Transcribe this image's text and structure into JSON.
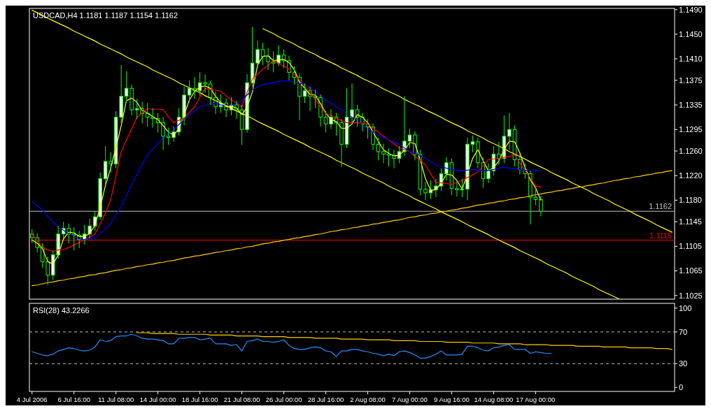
{
  "chart_data": [
    {
      "type": "candlestick",
      "title": "USDCAD,H4  1.1181 1.1187 1.1154 1.1162",
      "tick_labels": "y",
      "ylim": [
        1.1019,
        1.1492
      ],
      "yticks": [
        {
          "value": 1.149,
          "label": "1.1490"
        },
        {
          "value": 1.145,
          "label": "1.1450"
        },
        {
          "value": 1.141,
          "label": "1.1410"
        },
        1.1375,
        1.1335,
        1.1295,
        {
          "value": 1.126,
          "label": "1.1260"
        },
        {
          "value": 1.122,
          "label": "1.1220"
        },
        {
          "value": 1.118,
          "label": "1.1180"
        },
        1.1145,
        1.1105,
        1.1065,
        1.1025
      ],
      "categories": [
        null,
        null,
        null,
        null,
        null,
        null,
        null,
        null,
        null,
        null,
        null,
        null,
        null,
        null,
        null,
        null,
        null,
        null,
        null,
        null,
        null,
        null,
        null,
        null,
        null,
        null,
        null,
        null,
        null,
        null,
        null,
        null,
        null,
        null,
        null,
        null,
        null,
        null,
        null,
        null,
        null,
        null,
        null,
        null,
        null,
        null,
        null,
        null,
        null,
        null,
        null,
        null,
        null,
        null,
        null,
        null,
        null,
        null,
        null,
        null,
        null,
        null,
        null,
        null,
        null,
        null,
        null,
        null,
        null,
        null,
        null,
        null,
        null,
        null,
        null,
        null,
        null,
        null,
        null,
        null,
        null,
        null,
        null,
        null,
        null,
        null,
        null,
        null,
        null,
        null,
        null,
        null,
        null,
        null,
        null,
        null,
        null,
        null,
        null,
        null,
        null,
        null,
        null,
        null,
        null,
        null,
        null,
        null,
        null,
        null,
        null,
        null,
        null,
        null,
        null,
        null,
        null,
        null,
        null,
        null,
        null,
        null,
        null
      ],
      "color": "#00ff00",
      "ohlc": [
        [
          1.1125,
          1.1133,
          1.111,
          1.1119
        ],
        [
          1.1119,
          1.1126,
          1.1095,
          1.1103
        ],
        [
          1.1103,
          1.111,
          1.107,
          1.108
        ],
        [
          1.108,
          1.1088,
          1.1042,
          1.1058
        ],
        [
          1.1058,
          1.1098,
          1.105,
          1.1091
        ],
        [
          1.1091,
          1.1138,
          1.1085,
          1.1125
        ],
        [
          1.1125,
          1.1145,
          1.1118,
          1.1134
        ],
        [
          1.1134,
          1.1142,
          1.111,
          1.1125
        ],
        [
          1.1125,
          1.1136,
          1.1098,
          1.1123
        ],
        [
          1.1123,
          1.113,
          1.1102,
          1.1116
        ],
        [
          1.1116,
          1.114,
          1.1108,
          1.1125
        ],
        [
          1.1125,
          1.115,
          1.1118,
          1.1138
        ],
        [
          1.1138,
          1.1162,
          1.113,
          1.1153
        ],
        [
          1.1153,
          1.1225,
          1.1148,
          1.1215
        ],
        [
          1.1215,
          1.1268,
          1.1205,
          1.1243
        ],
        [
          1.1243,
          1.1258,
          1.1225,
          1.1239
        ],
        [
          1.1239,
          1.1325,
          1.1232,
          1.1315
        ],
        [
          1.1315,
          1.14,
          1.1305,
          1.1349
        ],
        [
          1.1349,
          1.139,
          1.134,
          1.1362
        ],
        [
          1.1362,
          1.1368,
          1.1318,
          1.1327
        ],
        [
          1.1327,
          1.1345,
          1.1312,
          1.1329
        ],
        [
          1.1329,
          1.134,
          1.1305,
          1.1321
        ],
        [
          1.1321,
          1.1338,
          1.13,
          1.1315
        ],
        [
          1.1315,
          1.133,
          1.1298,
          1.1313
        ],
        [
          1.1313,
          1.1322,
          1.129,
          1.1306
        ],
        [
          1.1306,
          1.1315,
          1.1262,
          1.1284
        ],
        [
          1.1284,
          1.1298,
          1.127,
          1.1282
        ],
        [
          1.1282,
          1.13,
          1.1275,
          1.1291
        ],
        [
          1.1291,
          1.133,
          1.1285,
          1.1315
        ],
        [
          1.1315,
          1.1365,
          1.1302,
          1.1351
        ],
        [
          1.1351,
          1.1375,
          1.134,
          1.1362
        ],
        [
          1.1362,
          1.138,
          1.1345,
          1.1358
        ],
        [
          1.1358,
          1.1388,
          1.135,
          1.1371
        ],
        [
          1.1371,
          1.1385,
          1.1355,
          1.1369
        ],
        [
          1.1369,
          1.1375,
          1.1335,
          1.1347
        ],
        [
          1.1347,
          1.1356,
          1.132,
          1.1332
        ],
        [
          1.1332,
          1.1352,
          1.1322,
          1.1338
        ],
        [
          1.1338,
          1.1346,
          1.1315,
          1.1327
        ],
        [
          1.1327,
          1.1348,
          1.1318,
          1.1335
        ],
        [
          1.1335,
          1.1342,
          1.1312,
          1.1327
        ],
        [
          1.1327,
          1.1335,
          1.127,
          1.1295
        ],
        [
          1.1295,
          1.1385,
          1.129,
          1.1371
        ],
        [
          1.1371,
          1.1462,
          1.1365,
          1.1403
        ],
        [
          1.1403,
          1.144,
          1.1395,
          1.1425
        ],
        [
          1.1425,
          1.1436,
          1.14,
          1.1414
        ],
        [
          1.1414,
          1.1428,
          1.1392,
          1.1405
        ],
        [
          1.1405,
          1.1422,
          1.1388,
          1.1403
        ],
        [
          1.1403,
          1.1432,
          1.1398,
          1.1416
        ],
        [
          1.1416,
          1.1425,
          1.1395,
          1.1407
        ],
        [
          1.1407,
          1.1415,
          1.1375,
          1.1388
        ],
        [
          1.1388,
          1.1398,
          1.1368,
          1.138
        ],
        [
          1.138,
          1.1386,
          1.131,
          1.1349
        ],
        [
          1.1349,
          1.137,
          1.1338,
          1.1358
        ],
        [
          1.1358,
          1.1365,
          1.1325,
          1.1349
        ],
        [
          1.1349,
          1.136,
          1.133,
          1.1347
        ],
        [
          1.1347,
          1.1352,
          1.13,
          1.1315
        ],
        [
          1.1315,
          1.1325,
          1.129,
          1.1304
        ],
        [
          1.1304,
          1.1328,
          1.1296,
          1.1315
        ],
        [
          1.1315,
          1.1322,
          1.1285,
          1.1306
        ],
        [
          1.1306,
          1.1312,
          1.1234,
          1.1271
        ],
        [
          1.1271,
          1.1362,
          1.1265,
          1.1315
        ],
        [
          1.1315,
          1.137,
          1.1305,
          1.1327
        ],
        [
          1.1327,
          1.1335,
          1.13,
          1.1315
        ],
        [
          1.1315,
          1.1322,
          1.1292,
          1.1304
        ],
        [
          1.1304,
          1.1312,
          1.128,
          1.1299
        ],
        [
          1.1299,
          1.1305,
          1.1262,
          1.1271
        ],
        [
          1.1271,
          1.1282,
          1.1245,
          1.1259
        ],
        [
          1.1259,
          1.1272,
          1.124,
          1.1255
        ],
        [
          1.1255,
          1.1265,
          1.1235,
          1.1253
        ],
        [
          1.1253,
          1.1262,
          1.1232,
          1.1248
        ],
        [
          1.1248,
          1.1268,
          1.124,
          1.1259
        ],
        [
          1.1259,
          1.1349,
          1.1252,
          1.1276
        ],
        [
          1.1276,
          1.1296,
          1.1265,
          1.1286
        ],
        [
          1.1286,
          1.1292,
          1.1245,
          1.1254
        ],
        [
          1.1254,
          1.1262,
          1.1188,
          1.1198
        ],
        [
          1.1198,
          1.121,
          1.118,
          1.1192
        ],
        [
          1.1192,
          1.1212,
          1.1182,
          1.1197
        ],
        [
          1.1197,
          1.1215,
          1.1185,
          1.1203
        ],
        [
          1.1203,
          1.1232,
          1.1195,
          1.1223
        ],
        [
          1.1223,
          1.125,
          1.1212,
          1.1241
        ],
        [
          1.1241,
          1.1248,
          1.1188,
          1.1199
        ],
        [
          1.1199,
          1.1212,
          1.1186,
          1.1197
        ],
        [
          1.1197,
          1.1215,
          1.1185,
          1.1198
        ],
        [
          1.1198,
          1.1282,
          1.118,
          1.1271
        ],
        [
          1.1271,
          1.1285,
          1.1258,
          1.1275
        ],
        [
          1.1275,
          1.1282,
          1.1232,
          1.1241
        ],
        [
          1.1241,
          1.125,
          1.12,
          1.1215
        ],
        [
          1.1215,
          1.124,
          1.1208,
          1.1228
        ],
        [
          1.1228,
          1.1268,
          1.122,
          1.1255
        ],
        [
          1.1255,
          1.1275,
          1.1238,
          1.1248
        ],
        [
          1.1248,
          1.1318,
          1.124,
          1.1284
        ],
        [
          1.1284,
          1.1322,
          1.1262,
          1.1295
        ],
        [
          1.1295,
          1.1302,
          1.1235,
          1.1246
        ],
        [
          1.1246,
          1.1255,
          1.1222,
          1.123
        ],
        [
          1.123,
          1.124,
          1.1215,
          1.1223
        ],
        [
          1.1223,
          1.1228,
          1.1141,
          1.1185
        ],
        [
          1.1185,
          1.12,
          1.1172,
          1.1181
        ],
        [
          1.1181,
          1.1187,
          1.1154,
          1.1162
        ],
        null,
        null,
        null,
        null,
        null,
        null,
        null,
        null,
        null,
        null,
        null,
        null,
        null,
        null,
        null,
        null,
        null,
        null,
        null,
        null,
        null,
        null,
        null,
        null,
        null
      ],
      "series": [
        {
          "type": "line",
          "color": "#ffff00",
          "values": [
            1.1115,
            1.111,
            1.1101,
            1.108,
            1.1076,
            1.1091,
            1.1117,
            1.1128,
            1.1127,
            1.1121,
            1.1121,
            1.1126,
            1.1139,
            1.1169,
            1.1204,
            1.1232,
            1.1266,
            1.1301,
            1.1342,
            1.1346,
            1.1339,
            1.1326,
            1.1322,
            1.1316,
            1.1311,
            1.1301,
            1.1291,
            1.1286,
            1.1296,
            1.1319,
            1.1343,
            1.1357,
            1.1364,
            1.1366,
            1.1362,
            1.1349,
            1.1339,
            1.1332,
            1.1333,
            1.133,
            1.1319,
            1.1331,
            1.1356,
            1.14,
            1.1414,
            1.1415,
            1.1407,
            1.1408,
            1.1409,
            1.1404,
            1.1392,
            1.1372,
            1.1362,
            1.1352,
            1.1351,
            1.1337,
            1.1322,
            1.1311,
            1.1308,
            1.1297,
            1.1297,
            1.1304,
            1.1319,
            1.1315,
            1.1306,
            1.1291,
            1.1276,
            1.1262,
            1.1256,
            1.1252,
            1.1253,
            1.1261,
            1.1274,
            1.1272,
            1.1246,
            1.1215,
            1.1196,
            1.1197,
            1.1208,
            1.1222,
            1.1221,
            1.1212,
            1.1198,
            1.1222,
            1.1248,
            1.1262,
            1.1244,
            1.1228,
            1.1233,
            1.1244,
            1.1262,
            1.1276,
            1.1275,
            1.1257,
            1.1233,
            1.1213,
            1.12,
            1.118,
            null,
            null,
            null,
            null,
            null,
            null,
            null,
            null,
            null,
            null,
            null,
            null,
            null,
            null,
            null,
            null,
            null,
            null,
            null,
            null,
            null,
            null,
            null,
            null,
            null
          ]
        },
        {
          "type": "line",
          "color": "#ff0000",
          "values": [
            1.1125,
            1.1114,
            1.1103,
            1.1099,
            1.1097,
            1.1099,
            1.11,
            1.1103,
            1.1107,
            1.1111,
            1.1116,
            1.112,
            1.1125,
            1.1142,
            1.1159,
            1.1181,
            1.122,
            1.1259,
            1.1278,
            1.1296,
            1.1315,
            1.1322,
            1.1329,
            1.1328,
            1.1328,
            1.1327,
            1.1316,
            1.1306,
            1.131,
            1.1313,
            1.1323,
            1.1332,
            1.1348,
            1.1362,
            1.136,
            1.1359,
            1.1357,
            1.135,
            1.1343,
            1.1338,
            1.1332,
            1.1355,
            1.1377,
            1.1385,
            1.1393,
            1.1399,
            1.1407,
            1.1403,
            1.1398,
            1.1394,
            1.1385,
            1.1375,
            1.1366,
            1.1355,
            1.1343,
            1.1332,
            1.1321,
            1.1318,
            1.1313,
            1.131,
            1.1306,
            1.1306,
            1.1306,
            1.1305,
            1.1304,
            1.1297,
            1.1291,
            1.1284,
            1.1278,
            1.1272,
            1.1265,
            1.1262,
            1.1259,
            1.1251,
            1.1245,
            1.1237,
            1.1223,
            1.1209,
            1.1208,
            1.1207,
            1.1206,
            1.1209,
            1.1212,
            1.1217,
            1.1221,
            1.1226,
            1.1236,
            1.1246,
            1.1247,
            1.1248,
            1.125,
            1.1251,
            1.1254,
            1.124,
            1.1228,
            1.1216,
            1.1203,
            1.1201,
            null,
            null,
            null,
            null,
            null,
            null,
            null,
            null,
            null,
            null,
            null,
            null,
            null,
            null,
            null,
            null,
            null,
            null,
            null,
            null,
            null,
            null,
            null,
            null,
            null
          ]
        },
        {
          "type": "line",
          "color": "#0000ff",
          "values": [
            1.1178,
            1.1171,
            1.1164,
            1.1154,
            1.1144,
            1.1137,
            1.1131,
            1.1125,
            1.1122,
            1.1117,
            1.1116,
            1.1117,
            1.1119,
            1.1126,
            1.1133,
            1.1143,
            1.1156,
            1.117,
            1.1188,
            1.1206,
            1.1222,
            1.1238,
            1.1254,
            1.1263,
            1.1272,
            1.1281,
            1.1288,
            1.1295,
            1.1303,
            1.1311,
            1.1319,
            1.1325,
            1.1332,
            1.1334,
            1.1337,
            1.1337,
            1.1335,
            1.1334,
            1.1335,
            1.1337,
            1.1342,
            1.1351,
            1.136,
            1.1364,
            1.1368,
            1.137,
            1.1371,
            1.1374,
            1.1374,
            1.1374,
            1.1372,
            1.137,
            1.1369,
            1.1362,
            1.1357,
            1.135,
            1.1343,
            1.1338,
            1.1332,
            1.1327,
            1.1321,
            1.1315,
            1.131,
            1.1303,
            1.1296,
            1.1291,
            1.1286,
            1.1282,
            1.1278,
            1.1275,
            1.1271,
            1.1265,
            1.1259,
            1.1256,
            1.1253,
            1.1248,
            1.1243,
            1.1237,
            1.1235,
            1.1232,
            1.123,
            1.1229,
            1.1228,
            1.1229,
            1.123,
            1.1229,
            1.1228,
            1.1228,
            1.123,
            1.1232,
            1.1234,
            1.1232,
            1.1231,
            1.123,
            1.1229,
            1.1228,
            1.1228,
            1.1228,
            null,
            null,
            null,
            null,
            null,
            null,
            null,
            null,
            null,
            null,
            null,
            null,
            null,
            null,
            null,
            null,
            null,
            null,
            null,
            null,
            null,
            null,
            null,
            null,
            null
          ]
        },
        {
          "type": "line",
          "color": "#ffff00",
          "values": [
            1.1489,
            1.1485,
            1.1481,
            1.1476,
            1.1472,
            1.1468,
            1.1464,
            1.146,
            1.1455,
            1.1451,
            1.1447,
            1.1443,
            1.1439,
            1.1434,
            1.143,
            1.1426,
            1.1422,
            1.1418,
            1.1413,
            1.1409,
            1.1405,
            1.1401,
            1.1397,
            1.1392,
            1.1388,
            1.1384,
            1.138,
            1.1376,
            1.1371,
            1.1367,
            1.1363,
            1.1359,
            1.1355,
            1.135,
            1.1346,
            1.1342,
            1.1338,
            1.1334,
            1.1329,
            1.1325,
            1.1321,
            1.1317,
            1.1313,
            1.1308,
            1.1304,
            1.13,
            1.1296,
            1.1292,
            1.1287,
            1.1283,
            1.1279,
            1.1275,
            1.1271,
            1.1266,
            1.1262,
            1.1258,
            1.1254,
            1.125,
            1.1245,
            1.1241,
            1.1237,
            1.1233,
            1.1229,
            1.1224,
            1.122,
            1.1216,
            1.1212,
            1.1208,
            1.1203,
            1.1199,
            1.1195,
            1.1191,
            1.1187,
            1.1182,
            1.1178,
            1.1174,
            1.117,
            1.1166,
            1.1161,
            1.1157,
            1.1153,
            1.1149,
            1.1145,
            1.114,
            1.1136,
            1.1132,
            1.1128,
            1.1124,
            1.1119,
            1.1115,
            1.1111,
            1.1107,
            1.1103,
            1.1098,
            1.1094,
            1.109,
            1.1086,
            1.1082,
            1.1077,
            1.1073,
            1.1069,
            1.1065,
            1.1061,
            1.1056,
            1.1052,
            1.1048,
            1.1044,
            1.104,
            1.1035,
            1.1031,
            1.1027,
            1.1023,
            1.1019,
            null,
            null,
            null,
            null,
            null,
            null,
            null,
            null,
            null,
            null
          ]
        },
        {
          "type": "line",
          "color": "#ffff00",
          "values": [
            null,
            null,
            null,
            null,
            null,
            null,
            null,
            null,
            null,
            null,
            null,
            null,
            null,
            null,
            null,
            null,
            null,
            null,
            null,
            null,
            null,
            null,
            null,
            null,
            null,
            null,
            null,
            null,
            null,
            null,
            null,
            null,
            null,
            null,
            null,
            null,
            null,
            null,
            null,
            null,
            null,
            null,
            null,
            null,
            1.1459,
            1.1455,
            1.1451,
            1.1446,
            1.1442,
            1.1438,
            1.1434,
            1.1429,
            1.1425,
            1.1421,
            1.1417,
            1.1412,
            1.1408,
            1.1404,
            1.14,
            1.1395,
            1.1391,
            1.1387,
            1.1383,
            1.1378,
            1.1374,
            1.137,
            1.1366,
            1.1361,
            1.1357,
            1.1353,
            1.1349,
            1.1344,
            1.134,
            1.1336,
            1.1332,
            1.1327,
            1.1323,
            1.1319,
            1.1315,
            1.131,
            1.1306,
            1.1302,
            1.1298,
            1.1293,
            1.1289,
            1.1285,
            1.1281,
            1.1276,
            1.1272,
            1.1268,
            1.1264,
            1.1259,
            1.1255,
            1.1251,
            1.1247,
            1.1242,
            1.1238,
            1.1234,
            1.123,
            1.1225,
            1.1221,
            1.1217,
            1.1213,
            1.1208,
            1.1204,
            1.12,
            1.1196,
            1.1191,
            1.1187,
            1.1183,
            1.1179,
            1.1174,
            1.117,
            1.1166,
            1.1162,
            1.1157,
            1.1153,
            1.1149,
            1.1145,
            1.114,
            1.1136,
            1.1132,
            1.1128
          ]
        },
        {
          "type": "line",
          "color": "#ffcc00",
          "values": [
            1.1041,
            1.1042,
            1.1044,
            1.1046,
            1.1047,
            1.1049,
            1.105,
            1.1052,
            1.1053,
            1.1055,
            1.1056,
            1.1058,
            1.1059,
            1.1061,
            1.1062,
            1.1064,
            1.1066,
            1.1067,
            1.1069,
            1.107,
            1.1072,
            1.1073,
            1.1075,
            1.1076,
            1.1078,
            1.1079,
            1.1081,
            1.1082,
            1.1084,
            1.1086,
            1.1087,
            1.1089,
            1.109,
            1.1092,
            1.1093,
            1.1095,
            1.1096,
            1.1098,
            1.1099,
            1.1101,
            1.1102,
            1.1104,
            1.1105,
            1.1107,
            1.1109,
            1.111,
            1.1112,
            1.1113,
            1.1115,
            1.1116,
            1.1118,
            1.1119,
            1.1121,
            1.1122,
            1.1124,
            1.1125,
            1.1127,
            1.1129,
            1.113,
            1.1132,
            1.1133,
            1.1135,
            1.1136,
            1.1138,
            1.1139,
            1.1141,
            1.1142,
            1.1144,
            1.1145,
            1.1147,
            1.1148,
            1.115,
            1.1152,
            1.1153,
            1.1155,
            1.1156,
            1.1158,
            1.1159,
            1.1161,
            1.1162,
            1.1164,
            1.1165,
            1.1167,
            1.1168,
            1.117,
            1.1172,
            1.1173,
            1.1175,
            1.1176,
            1.1178,
            1.1179,
            1.1181,
            1.1182,
            1.1184,
            1.1185,
            1.1187,
            1.1189,
            1.119,
            1.1192,
            1.1193,
            1.1195,
            1.1196,
            1.1198,
            1.1199,
            1.1201,
            1.1202,
            1.1204,
            1.1205,
            1.1207,
            1.1208,
            1.121,
            1.1212,
            1.1213,
            1.1215,
            1.1216,
            1.1218,
            1.1219,
            1.1221,
            1.1222,
            1.1224,
            1.1225,
            1.1227,
            1.1228
          ]
        }
      ],
      "ref_lines": [
        {
          "axis": "y",
          "value": 1.1162,
          "label": "1.1162",
          "color": "#c0c0c0"
        },
        {
          "axis": "y",
          "value": 1.1115,
          "label": "1.1115",
          "color": "#ff0000"
        }
      ]
    },
    {
      "type": "line",
      "title": "RSI(28) 43.2266",
      "ylim": [
        -5,
        106
      ],
      "yticks": [
        0,
        30,
        70,
        100
      ],
      "categories": [
        "4 Jul 2006",
        null,
        null,
        null,
        null,
        null,
        null,
        null,
        "6 Jul 16:00",
        null,
        null,
        null,
        null,
        null,
        null,
        null,
        "11 Jul 08:00",
        null,
        null,
        null,
        null,
        null,
        null,
        null,
        "14 Jul 00:00",
        null,
        null,
        null,
        null,
        null,
        null,
        null,
        "18 Jul 16:00",
        null,
        null,
        null,
        null,
        null,
        null,
        null,
        "21 Jul 08:00",
        null,
        null,
        null,
        null,
        null,
        null,
        null,
        "26 Jul 00:00",
        null,
        null,
        null,
        null,
        null,
        null,
        null,
        "28 Jul 16:00",
        null,
        null,
        null,
        null,
        null,
        null,
        null,
        "2 Aug 08:00",
        null,
        null,
        null,
        null,
        null,
        null,
        null,
        "7 Aug 00:00",
        null,
        null,
        null,
        null,
        null,
        null,
        null,
        "9 Aug 16:00",
        null,
        null,
        null,
        null,
        null,
        null,
        null,
        "14 Aug 08:00",
        null,
        null,
        null,
        null,
        null,
        null,
        null,
        "17 Aug 00:00",
        null,
        null,
        null,
        null,
        null,
        null,
        null,
        null,
        null,
        null,
        null,
        null,
        null,
        null,
        null,
        null,
        null,
        null,
        null,
        null,
        null,
        null,
        null,
        null,
        null,
        null
      ],
      "series": [
        {
          "color": "#1e90ff",
          "values": [
            45,
            43,
            41,
            40,
            42,
            46,
            48,
            50,
            49,
            47,
            46,
            47,
            51,
            60,
            58,
            59,
            64,
            65,
            65,
            67,
            65,
            62,
            61,
            61,
            60,
            59,
            55,
            55,
            62,
            62,
            63,
            63,
            60,
            61,
            62,
            55,
            55,
            55,
            53,
            54,
            46,
            58,
            59,
            61,
            58,
            58,
            57,
            58,
            60,
            53,
            49,
            48,
            48,
            50,
            51,
            50,
            46,
            45,
            39,
            46,
            46,
            48,
            48,
            46,
            45,
            43,
            42,
            40,
            42,
            40,
            45,
            46,
            44,
            41,
            37,
            37,
            39,
            42,
            46,
            41,
            41,
            41,
            42,
            52,
            52,
            50,
            47,
            46,
            50,
            51,
            53,
            54,
            48,
            48,
            48,
            43,
            45,
            44,
            43,
            43,
            null,
            null,
            null,
            null,
            null,
            null,
            null,
            null,
            null,
            null,
            null,
            null,
            null,
            null,
            null,
            null,
            null,
            null,
            null,
            null,
            null,
            null,
            null
          ]
        },
        {
          "color": "#ffcc00",
          "values": [
            null,
            null,
            null,
            null,
            null,
            null,
            null,
            null,
            null,
            null,
            null,
            null,
            null,
            null,
            null,
            null,
            null,
            null,
            null,
            null,
            69,
            69,
            69,
            68,
            68,
            68,
            68,
            68,
            67,
            67,
            67,
            67,
            67,
            67,
            66,
            66,
            66,
            66,
            66,
            65,
            65,
            65,
            65,
            65,
            64,
            64,
            64,
            64,
            64,
            63,
            63,
            63,
            63,
            63,
            62,
            62,
            62,
            62,
            62,
            61,
            61,
            61,
            61,
            61,
            60,
            60,
            60,
            60,
            60,
            59,
            59,
            59,
            59,
            59,
            58,
            58,
            58,
            58,
            58,
            57,
            57,
            57,
            57,
            57,
            56,
            56,
            56,
            56,
            56,
            55,
            55,
            55,
            55,
            55,
            54,
            54,
            54,
            54,
            54,
            53,
            53,
            53,
            53,
            53,
            52,
            52,
            52,
            52,
            52,
            51,
            51,
            51,
            51,
            51,
            50,
            50,
            50,
            50,
            50,
            49,
            49,
            49,
            48
          ]
        }
      ],
      "ref_lines": [
        {
          "axis": "y",
          "value": 70,
          "color": "#c0c0c0",
          "line_style": "dashed"
        },
        {
          "axis": "y",
          "value": 30,
          "color": "#c0c0c0",
          "line_style": "dashed"
        }
      ]
    }
  ]
}
